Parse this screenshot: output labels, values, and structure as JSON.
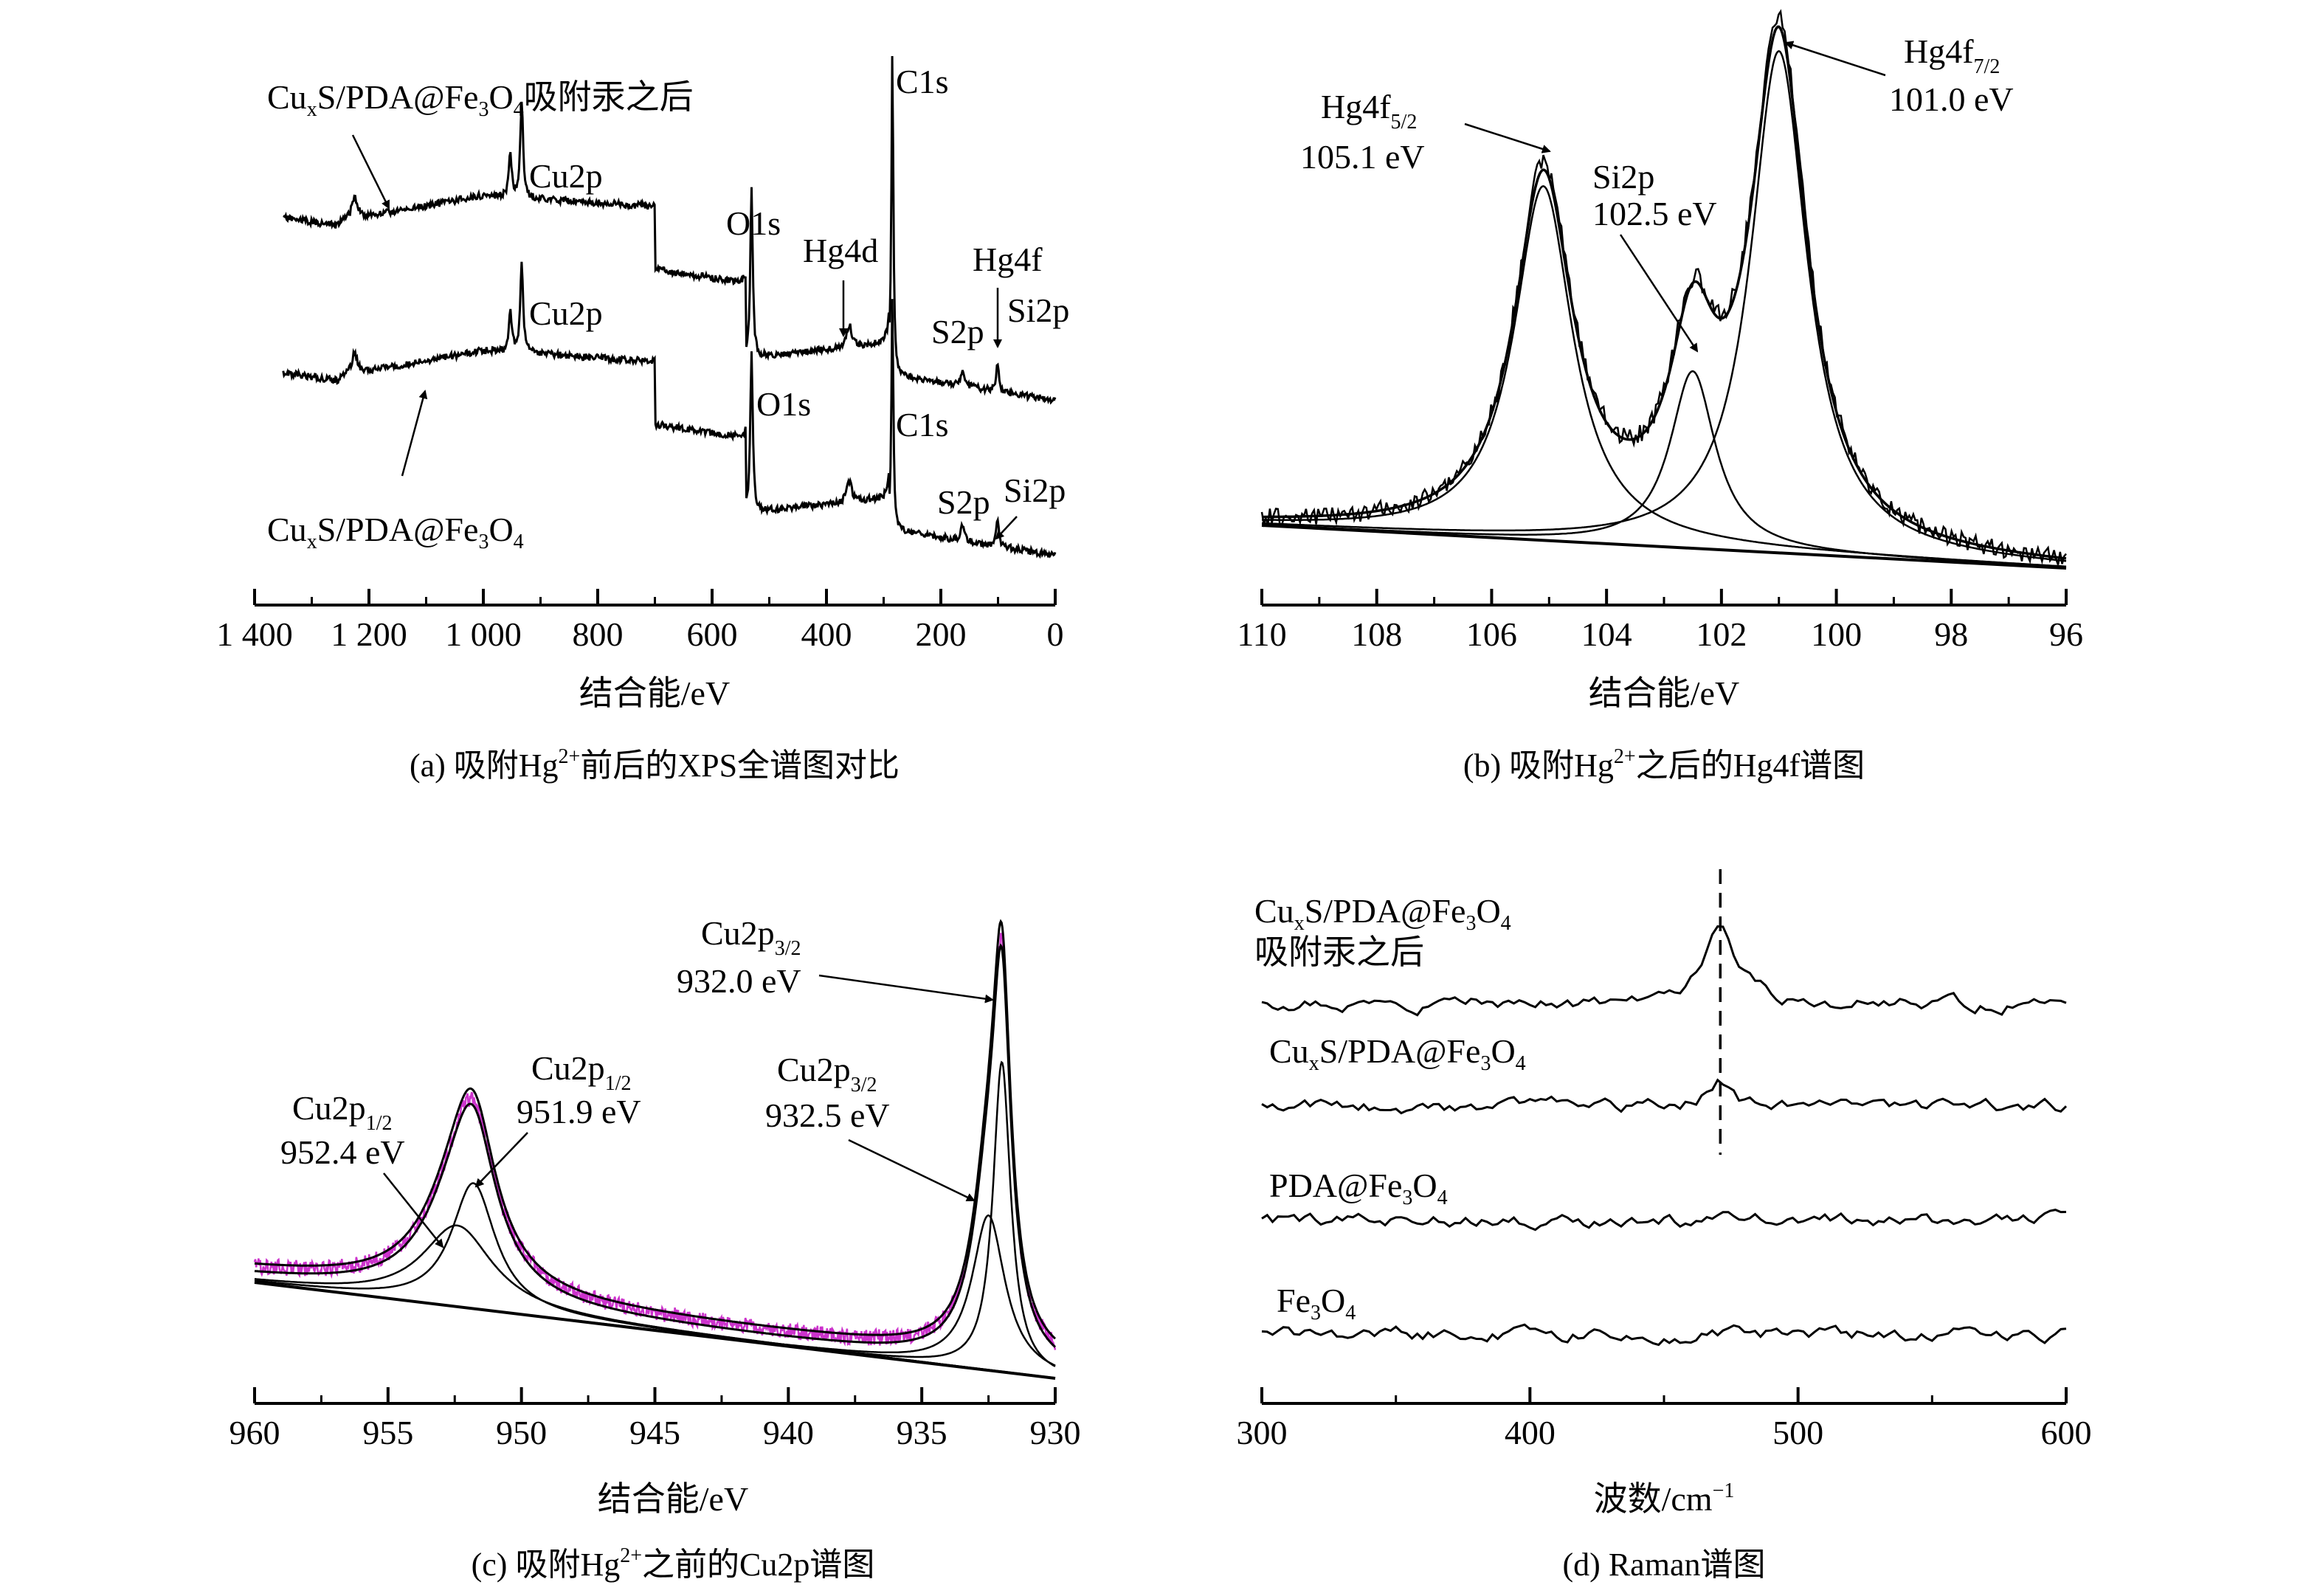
{
  "chart_data": [
    {
      "id": "a",
      "type": "line",
      "caption": {
        "pre": "(a) 吸附Hg",
        "sup": "2+",
        "post": "前后的XPS全谱图对比"
      },
      "xlabel": "结合能/eV",
      "xlim": [
        1400,
        0
      ],
      "xticks": [
        {
          "v": 1400,
          "t": "1 400"
        },
        {
          "v": 1200,
          "t": "1 200"
        },
        {
          "v": 1000,
          "t": "1 000"
        },
        {
          "v": 800,
          "t": "800"
        },
        {
          "v": 600,
          "t": "600"
        },
        {
          "v": 400,
          "t": "400"
        },
        {
          "v": 200,
          "t": "200"
        },
        {
          "v": 0,
          "t": "0"
        }
      ],
      "series": [
        {
          "key": "after",
          "offset": 0,
          "label": {
            "p1": "Cu",
            "s1": "x",
            "p2": "S/PDA@Fe",
            "s2": "3",
            "p3": "O",
            "s3": "4",
            "p4": "吸附汞之后"
          }
        },
        {
          "key": "before",
          "offset": 1,
          "label": {
            "p1": "Cu",
            "s1": "x",
            "p2": "S/PDA@Fe",
            "s2": "3",
            "p3": "O",
            "s3": "4",
            "p4": ""
          }
        }
      ],
      "peaks": [
        {
          "name": "Cu2p",
          "x": 933
        },
        {
          "name": "O1s",
          "x": 531
        },
        {
          "name": "C1s",
          "x": 284.8
        },
        {
          "name": "Hg4d",
          "x": 360
        },
        {
          "name": "S2p",
          "x": 162
        },
        {
          "name": "Hg4f",
          "x": 101
        },
        {
          "name": "Si2p",
          "x": 102
        }
      ],
      "annotations": {
        "cu2p_top": "Cu2p",
        "o1s_top": "O1s",
        "c1s_top": "C1s",
        "hg4d": "Hg4d",
        "hg4f": "Hg4f",
        "s2p_top": "S2p",
        "si2p_top": "Si2p",
        "cu2p_bot": "Cu2p",
        "o1s_bot": "O1s",
        "c1s_bot": "C1s",
        "s2p_bot": "S2p",
        "si2p_bot": "Si2p"
      }
    },
    {
      "id": "b",
      "type": "line",
      "caption": {
        "pre": "(b) 吸附Hg",
        "sup": "2+",
        "post": "之后的Hg4f谱图"
      },
      "xlabel": "结合能/eV",
      "xlim": [
        110,
        96
      ],
      "xticks": [
        {
          "v": 110,
          "t": "110"
        },
        {
          "v": 108,
          "t": "108"
        },
        {
          "v": 106,
          "t": "106"
        },
        {
          "v": 104,
          "t": "104"
        },
        {
          "v": 102,
          "t": "102"
        },
        {
          "v": 100,
          "t": "100"
        },
        {
          "v": 98,
          "t": "98"
        },
        {
          "v": 96,
          "t": "96"
        }
      ],
      "peaks": [
        {
          "name": "Hg4f 5/2",
          "x": 105.1,
          "label_main": "Hg4f",
          "label_sub": "5/2",
          "value": "105.1 eV"
        },
        {
          "name": "Si2p",
          "x": 102.5,
          "label_main": "Si2p",
          "label_sub": "",
          "value": "102.5 eV"
        },
        {
          "name": "Hg4f 7/2",
          "x": 101.0,
          "label_main": "Hg4f",
          "label_sub": "7/2",
          "value": "101.0 eV"
        }
      ]
    },
    {
      "id": "c",
      "type": "line",
      "caption": {
        "pre": "(c) 吸附Hg",
        "sup": "2+",
        "post": "之前的Cu2p谱图"
      },
      "xlabel": "结合能/eV",
      "xlim": [
        960,
        930
      ],
      "xticks": [
        {
          "v": 960,
          "t": "960"
        },
        {
          "v": 955,
          "t": "955"
        },
        {
          "v": 950,
          "t": "950"
        },
        {
          "v": 945,
          "t": "945"
        },
        {
          "v": 940,
          "t": "940"
        },
        {
          "v": 935,
          "t": "935"
        },
        {
          "v": 930,
          "t": "930"
        }
      ],
      "peaks": [
        {
          "x": 952.4,
          "label_main": "Cu2p",
          "label_sub": "1/2",
          "value": "952.4 eV"
        },
        {
          "x": 951.9,
          "label_main": "Cu2p",
          "label_sub": "1/2",
          "value": "951.9 eV"
        },
        {
          "x": 932.5,
          "label_main": "Cu2p",
          "label_sub": "3/2",
          "value": "932.5 eV"
        },
        {
          "x": 932.0,
          "label_main": "Cu2p",
          "label_sub": "3/2",
          "value": "932.0 eV"
        }
      ],
      "colors": {
        "raw": "#cc33cc",
        "fit": "#000000"
      }
    },
    {
      "id": "d",
      "type": "line",
      "caption": {
        "pre": "(d) Raman谱图",
        "sup": "",
        "post": ""
      },
      "xlabel": "波数/cm",
      "xlabel_sup": "−1",
      "xlim": [
        300,
        600
      ],
      "xticks": [
        {
          "v": 300,
          "t": "300"
        },
        {
          "v": 400,
          "t": "400"
        },
        {
          "v": 500,
          "t": "500"
        },
        {
          "v": 600,
          "t": "600"
        }
      ],
      "peak_line_x": 471,
      "series": [
        {
          "key": "after",
          "label": {
            "p1": "Cu",
            "s1": "x",
            "p2": "S/PDA@Fe",
            "s2": "3",
            "p3": "O",
            "s3": "4",
            "line2": "吸附汞之后"
          }
        },
        {
          "key": "cuxs",
          "label": {
            "p1": "Cu",
            "s1": "x",
            "p2": "S/PDA@Fe",
            "s2": "3",
            "p3": "O",
            "s3": "4",
            "line2": ""
          }
        },
        {
          "key": "pda",
          "label": {
            "p1": "PDA@Fe",
            "s1": "3",
            "p2": "O",
            "s2": "4",
            "p3": "",
            "s3": "",
            "line2": ""
          }
        },
        {
          "key": "fe3o4",
          "label": {
            "p1": "Fe",
            "s1": "3",
            "p2": "O",
            "s2": "4",
            "p3": "",
            "s3": "",
            "line2": ""
          }
        }
      ]
    }
  ]
}
